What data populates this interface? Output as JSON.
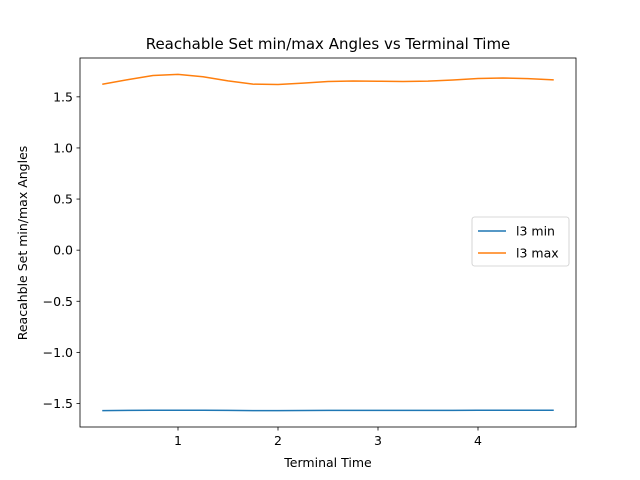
{
  "chart_data": {
    "type": "line",
    "title": "Reachable Set min/max Angles vs Terminal Time",
    "xlabel": "Terminal Time",
    "ylabel": "Reacahble Set min/max Angles",
    "xlim": [
      0.02,
      4.98
    ],
    "ylim": [
      -1.73,
      1.88
    ],
    "xticks": [
      1,
      2,
      3,
      4
    ],
    "xtick_labels": [
      "1",
      "2",
      "3",
      "4"
    ],
    "yticks": [
      -1.5,
      -1.0,
      -0.5,
      0.0,
      0.5,
      1.0,
      1.5
    ],
    "ytick_labels": [
      "−1.5",
      "−1.0",
      "−0.5",
      "0.0",
      "0.5",
      "1.0",
      "1.5"
    ],
    "grid": false,
    "legend_position": "center-right",
    "x": [
      0.25,
      0.5,
      0.75,
      1.0,
      1.25,
      1.5,
      1.75,
      2.0,
      2.25,
      2.5,
      2.75,
      3.0,
      3.25,
      3.5,
      3.75,
      4.0,
      4.25,
      4.5,
      4.75
    ],
    "series": [
      {
        "name": "l3 min",
        "color": "#1f77b4",
        "values": [
          -1.57,
          -1.567,
          -1.566,
          -1.566,
          -1.566,
          -1.567,
          -1.57,
          -1.57,
          -1.569,
          -1.567,
          -1.567,
          -1.567,
          -1.567,
          -1.567,
          -1.567,
          -1.566,
          -1.566,
          -1.566,
          -1.566
        ]
      },
      {
        "name": "l3 max",
        "color": "#ff7f0e",
        "values": [
          1.625,
          1.668,
          1.709,
          1.72,
          1.697,
          1.656,
          1.624,
          1.621,
          1.634,
          1.65,
          1.655,
          1.653,
          1.65,
          1.654,
          1.665,
          1.679,
          1.684,
          1.678,
          1.666
        ]
      }
    ]
  }
}
